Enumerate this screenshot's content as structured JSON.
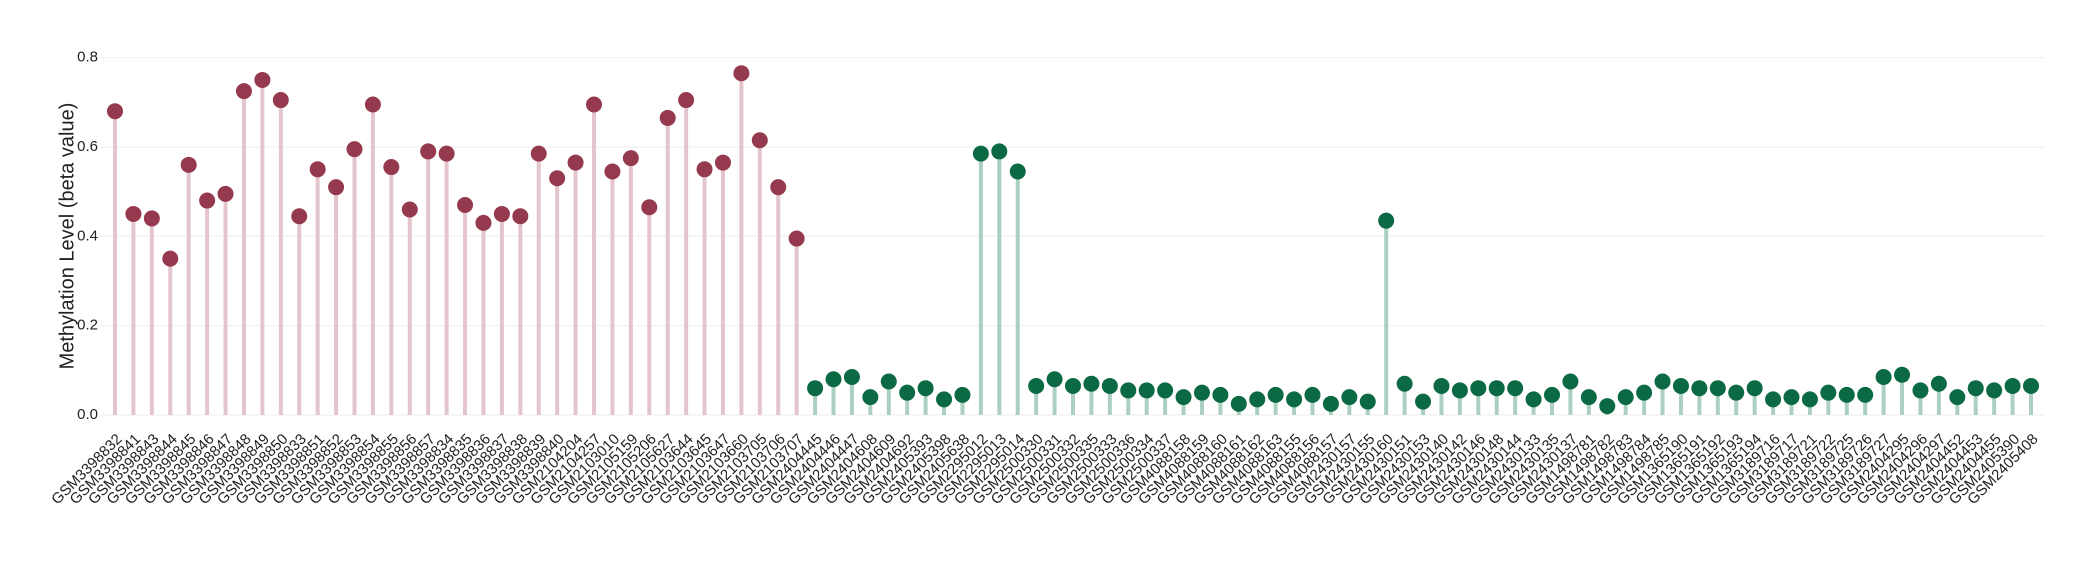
{
  "chart_data": {
    "type": "lollipop",
    "y_label": "Methylation Level (beta value)",
    "categories": [
      "GSM3398832",
      "GSM3398841",
      "GSM3398843",
      "GSM3398844",
      "GSM3398845",
      "GSM3398846",
      "GSM3398847",
      "GSM3398848",
      "GSM3398849",
      "GSM3398850",
      "GSM3398833",
      "GSM3398851",
      "GSM3398852",
      "GSM3398853",
      "GSM3398854",
      "GSM3398855",
      "GSM3398856",
      "GSM3398857",
      "GSM3398834",
      "GSM3398835",
      "GSM3398836",
      "GSM3398837",
      "GSM3398838",
      "GSM3398839",
      "GSM3398840",
      "GSM2104204",
      "GSM2104257",
      "GSM2103010",
      "GSM2105159",
      "GSM2105206",
      "GSM2105627",
      "GSM2103644",
      "GSM2103645",
      "GSM2103647",
      "GSM2103660",
      "GSM2103705",
      "GSM2103706",
      "GSM2103707",
      "GSM2404445",
      "GSM2404446",
      "GSM2404447",
      "GSM2404608",
      "GSM2404609",
      "GSM2404692",
      "GSM2405393",
      "GSM2405398",
      "GSM2405638",
      "GSM2295012",
      "GSM2295013",
      "GSM2295014",
      "GSM2500330",
      "GSM2500331",
      "GSM2500332",
      "GSM2500335",
      "GSM2500333",
      "GSM2500336",
      "GSM2500334",
      "GSM2500337",
      "GSM4088158",
      "GSM4088159",
      "GSM4088160",
      "GSM4088161",
      "GSM4088162",
      "GSM4088163",
      "GSM4088155",
      "GSM4088156",
      "GSM4088157",
      "GSM2430157",
      "GSM2430155",
      "GSM2430160",
      "GSM2430151",
      "GSM2430153",
      "GSM2430140",
      "GSM2430142",
      "GSM2430146",
      "GSM2430148",
      "GSM2430144",
      "GSM2430133",
      "GSM2430135",
      "GSM2430137",
      "GSM1498781",
      "GSM1498782",
      "GSM1498783",
      "GSM1498784",
      "GSM1498785",
      "GSM1365190",
      "GSM1365191",
      "GSM1365192",
      "GSM1365193",
      "GSM1365194",
      "GSM3189716",
      "GSM3189717",
      "GSM3189721",
      "GSM3189722",
      "GSM3189725",
      "GSM3189726",
      "GSM3189727",
      "GSM2404295",
      "GSM2404296",
      "GSM2404297",
      "GSM2404452",
      "GSM2404453",
      "GSM2404455",
      "GSM2405390",
      "GSM2405408"
    ],
    "series": [
      {
        "color": "#953a4e",
        "stem_color": "#e5c5cc",
        "values": [
          0.68,
          0.45,
          0.44,
          0.35,
          0.56,
          0.48,
          0.495,
          0.725,
          0.75,
          0.705,
          0.445,
          0.55,
          0.51,
          0.595,
          0.695,
          0.555,
          0.46,
          0.59,
          0.585,
          0.47,
          0.43,
          0.45,
          0.445,
          0.585,
          0.53,
          0.565,
          0.695,
          0.545,
          0.575,
          0.465,
          0.665,
          0.705,
          0.55,
          0.565,
          0.765,
          0.615,
          0.51,
          0.395,
          null,
          null,
          null,
          null,
          null,
          null,
          null,
          null,
          null,
          null,
          null,
          null,
          null,
          null,
          null,
          null,
          null,
          null,
          null,
          null,
          null,
          null,
          null,
          null,
          null,
          null,
          null,
          null,
          null,
          null,
          null,
          null,
          null,
          null,
          null,
          null,
          null,
          null,
          null,
          null,
          null,
          null,
          null,
          null,
          null,
          null,
          null,
          null,
          null,
          null,
          null,
          null,
          null,
          null,
          null,
          null,
          null,
          null,
          null,
          null,
          null,
          null,
          null,
          null,
          null,
          null,
          null
        ]
      },
      {
        "color": "#0b6a44",
        "stem_color": "#abd0c2",
        "values": [
          null,
          null,
          null,
          null,
          null,
          null,
          null,
          null,
          null,
          null,
          null,
          null,
          null,
          null,
          null,
          null,
          null,
          null,
          null,
          null,
          null,
          null,
          null,
          null,
          null,
          null,
          null,
          null,
          null,
          null,
          null,
          null,
          null,
          null,
          null,
          null,
          null,
          null,
          0.06,
          0.08,
          0.085,
          0.04,
          0.075,
          0.05,
          0.06,
          0.035,
          0.045,
          0.585,
          0.59,
          0.545,
          0.065,
          0.08,
          0.065,
          0.07,
          0.065,
          0.055,
          0.055,
          0.055,
          0.04,
          0.05,
          0.045,
          0.025,
          0.035,
          0.045,
          0.035,
          0.045,
          0.025,
          0.04,
          0.03,
          0.435,
          0.07,
          0.03,
          0.065,
          0.055,
          0.06,
          0.06,
          0.06,
          0.035,
          0.045,
          0.075,
          0.04,
          0.02,
          0.04,
          0.05,
          0.075,
          0.065,
          0.06,
          0.06,
          0.05,
          0.06,
          0.035,
          0.04,
          0.035,
          0.05,
          0.045,
          0.045,
          0.085,
          0.09,
          0.055,
          0.07,
          0.04,
          0.06,
          0.055,
          0.065,
          0.065
        ]
      }
    ],
    "ylim": [
      0,
      0.8
    ],
    "yticks": [
      {
        "value": 0,
        "label": "0.0"
      },
      {
        "value": 0.2,
        "label": "0.2"
      },
      {
        "value": 0.4,
        "label": "0.4"
      },
      {
        "value": 0.6,
        "label": "0.6"
      },
      {
        "value": 0.8,
        "label": "0.8"
      }
    ],
    "grid": true
  }
}
